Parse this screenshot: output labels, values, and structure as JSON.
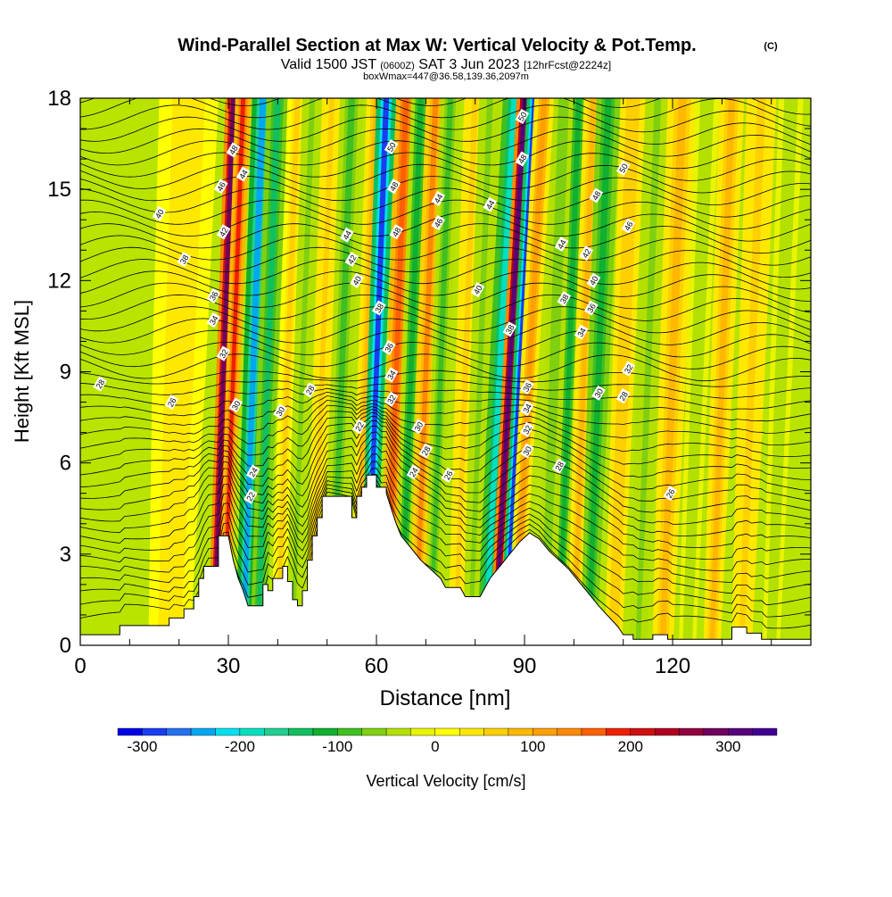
{
  "chart_data": {
    "type": "heatmap",
    "title": "Wind-Parallel Section at Max W: Vertical Velocity & Pot.Temp.",
    "title_mark": "(C)",
    "subtitle": {
      "valid": "Valid 1500 JST",
      "utc": "(0600Z)",
      "date": "SAT 3 Jun 2023",
      "fcst": "[12hrFcst@2224z]"
    },
    "subtitle2": "boxWmax=447@36.58,139.36,2097m",
    "xlabel": "Distance [nm]",
    "ylabel": "Height [Kft MSL]",
    "xlim": [
      0,
      148
    ],
    "ylim": [
      0,
      18
    ],
    "xticks": [
      0,
      30,
      60,
      90,
      120
    ],
    "yticks": [
      0,
      3,
      6,
      9,
      12,
      15,
      18
    ],
    "colorbar": {
      "label": "Vertical Velocity [cm/s]",
      "ticks": [
        -300,
        -200,
        -100,
        0,
        100,
        200,
        300
      ],
      "min": -325,
      "max": 350,
      "step": 25,
      "colors": [
        "#0000e8",
        "#1a3df0",
        "#2670f0",
        "#00a8f0",
        "#00e0f0",
        "#00e0c0",
        "#20d090",
        "#10c060",
        "#10b030",
        "#40c020",
        "#80d010",
        "#b4e000",
        "#e8f400",
        "#ffff00",
        "#ffe800",
        "#ffd000",
        "#ffb800",
        "#ffa000",
        "#ff8800",
        "#ff6000",
        "#f02000",
        "#d01010",
        "#b00020",
        "#900040",
        "#700060",
        "#58007a",
        "#400090"
      ]
    },
    "terrain_kft": [
      [
        0,
        0.35
      ],
      [
        8,
        0.35
      ],
      [
        8,
        0.65
      ],
      [
        14,
        0.65
      ],
      [
        14,
        0.65
      ],
      [
        18,
        0.65
      ],
      [
        18,
        0.9
      ],
      [
        21,
        0.9
      ],
      [
        21,
        1.2
      ],
      [
        23,
        1.2
      ],
      [
        23,
        1.6
      ],
      [
        24,
        1.6
      ],
      [
        24,
        2.2
      ],
      [
        25,
        2.2
      ],
      [
        25,
        2.6
      ],
      [
        28,
        2.6
      ],
      [
        28,
        3.6
      ],
      [
        29,
        3.6
      ],
      [
        30,
        3.6
      ],
      [
        31,
        2.8
      ],
      [
        32,
        2.2
      ],
      [
        33,
        1.8
      ],
      [
        34,
        1.3
      ],
      [
        37,
        1.3
      ],
      [
        37,
        2.0
      ],
      [
        38,
        2.0
      ],
      [
        38,
        1.8
      ],
      [
        39,
        1.8
      ],
      [
        39,
        2.2
      ],
      [
        41,
        2.2
      ],
      [
        41,
        2.6
      ],
      [
        42,
        2.6
      ],
      [
        42,
        2.1
      ],
      [
        43,
        2.1
      ],
      [
        43,
        1.5
      ],
      [
        44,
        1.5
      ],
      [
        44,
        1.3
      ],
      [
        45,
        1.3
      ],
      [
        45,
        1.8
      ],
      [
        46,
        1.8
      ],
      [
        46,
        2.8
      ],
      [
        47,
        2.8
      ],
      [
        47,
        3.6
      ],
      [
        48,
        3.6
      ],
      [
        48,
        4.2
      ],
      [
        49,
        4.2
      ],
      [
        49,
        4.9
      ],
      [
        55,
        4.9
      ],
      [
        55,
        4.2
      ],
      [
        56,
        4.2
      ],
      [
        56,
        4.9
      ],
      [
        57,
        4.9
      ],
      [
        57,
        5.2
      ],
      [
        58,
        5.2
      ],
      [
        58,
        5.6
      ],
      [
        60,
        5.6
      ],
      [
        60,
        5.2
      ],
      [
        62,
        5.2
      ],
      [
        62,
        5.0
      ],
      [
        63,
        4.5
      ],
      [
        64,
        4.0
      ],
      [
        65,
        3.6
      ],
      [
        67,
        3.2
      ],
      [
        69,
        2.8
      ],
      [
        71,
        2.5
      ],
      [
        73,
        2.2
      ],
      [
        74,
        1.9
      ],
      [
        77,
        1.9
      ],
      [
        78,
        1.6
      ],
      [
        81,
        1.6
      ],
      [
        82,
        1.9
      ],
      [
        83,
        2.2
      ],
      [
        85,
        2.6
      ],
      [
        87,
        3.0
      ],
      [
        89,
        3.4
      ],
      [
        91,
        3.7
      ],
      [
        93,
        3.5
      ],
      [
        95,
        3.1
      ],
      [
        97,
        2.8
      ],
      [
        99,
        2.5
      ],
      [
        101,
        2.1
      ],
      [
        103,
        1.7
      ],
      [
        105,
        1.3
      ],
      [
        107,
        0.95
      ],
      [
        109,
        0.6
      ],
      [
        110,
        0.35
      ],
      [
        112,
        0.35
      ],
      [
        112,
        0.2
      ],
      [
        116,
        0.2
      ],
      [
        116,
        0.35
      ],
      [
        119,
        0.35
      ],
      [
        119,
        0.2
      ],
      [
        132,
        0.2
      ],
      [
        132,
        0.6
      ],
      [
        135,
        0.6
      ],
      [
        135,
        0.4
      ],
      [
        138,
        0.4
      ],
      [
        138,
        0.2
      ],
      [
        148,
        0.2
      ]
    ],
    "w_bands": [
      {
        "x": 22,
        "w": 6,
        "v": 40
      },
      {
        "x": 31,
        "w": 1.6,
        "v": 280
      },
      {
        "x": 33,
        "w": 1.6,
        "v": 180
      },
      {
        "x": 37,
        "w": 2.2,
        "v": -230
      },
      {
        "x": 40,
        "w": 2.2,
        "v": -130
      },
      {
        "x": 44,
        "w": 2,
        "v": 50
      },
      {
        "x": 47,
        "w": 2,
        "v": -60
      },
      {
        "x": 51,
        "w": 2,
        "v": 60
      },
      {
        "x": 55,
        "w": 2.4,
        "v": -80
      },
      {
        "x": 60,
        "w": 2,
        "v": 80
      },
      {
        "x": 62,
        "w": 2,
        "v": -300
      },
      {
        "x": 66,
        "w": 2,
        "v": 170
      },
      {
        "x": 69,
        "w": 2,
        "v": -110
      },
      {
        "x": 72,
        "w": 2,
        "v": 130
      },
      {
        "x": 75,
        "w": 2,
        "v": -90
      },
      {
        "x": 80,
        "w": 2.2,
        "v": 60
      },
      {
        "x": 83,
        "w": 2.2,
        "v": -60
      },
      {
        "x": 88,
        "w": 2.4,
        "v": -200
      },
      {
        "x": 90,
        "w": 1.6,
        "v": 300
      },
      {
        "x": 92,
        "w": 1.5,
        "v": -280
      },
      {
        "x": 94,
        "w": 2,
        "v": 110
      },
      {
        "x": 98,
        "w": 2,
        "v": -70
      },
      {
        "x": 101,
        "w": 2,
        "v": -110
      },
      {
        "x": 104,
        "w": 2,
        "v": 80
      },
      {
        "x": 107,
        "w": 2.4,
        "v": -120
      },
      {
        "x": 112,
        "w": 2.5,
        "v": 70
      },
      {
        "x": 117,
        "w": 2.5,
        "v": -60
      },
      {
        "x": 122,
        "w": 3,
        "v": 90
      },
      {
        "x": 127,
        "w": 2.5,
        "v": -50
      },
      {
        "x": 132,
        "w": 2.5,
        "v": 80
      },
      {
        "x": 138,
        "w": 3,
        "v": 60
      },
      {
        "x": 144,
        "w": 2.5,
        "v": -40
      }
    ],
    "theta_labels": [
      {
        "x": 31,
        "y": 16.3,
        "t": "48"
      },
      {
        "x": 33,
        "y": 15.5,
        "t": "44"
      },
      {
        "x": 28.5,
        "y": 15.1,
        "t": "46"
      },
      {
        "x": 29,
        "y": 13.6,
        "t": "42"
      },
      {
        "x": 16,
        "y": 14.2,
        "t": "40"
      },
      {
        "x": 21,
        "y": 12.7,
        "t": "38"
      },
      {
        "x": 27,
        "y": 11.5,
        "t": "36"
      },
      {
        "x": 27,
        "y": 10.7,
        "t": "34"
      },
      {
        "x": 29,
        "y": 9.6,
        "t": "32"
      },
      {
        "x": 31.5,
        "y": 7.9,
        "t": "30"
      },
      {
        "x": 40.5,
        "y": 7.7,
        "t": "30"
      },
      {
        "x": 46.5,
        "y": 8.4,
        "t": "28"
      },
      {
        "x": 4,
        "y": 8.6,
        "t": "28"
      },
      {
        "x": 18.5,
        "y": 8.0,
        "t": "26"
      },
      {
        "x": 56.5,
        "y": 7.2,
        "t": "22"
      },
      {
        "x": 35,
        "y": 5.7,
        "t": "24"
      },
      {
        "x": 34.5,
        "y": 4.9,
        "t": "22"
      },
      {
        "x": 63,
        "y": 16.4,
        "t": "50"
      },
      {
        "x": 63.5,
        "y": 15.1,
        "t": "48"
      },
      {
        "x": 54,
        "y": 13.5,
        "t": "44"
      },
      {
        "x": 55,
        "y": 12.7,
        "t": "42"
      },
      {
        "x": 56,
        "y": 12.0,
        "t": "40"
      },
      {
        "x": 60.5,
        "y": 11.1,
        "t": "38"
      },
      {
        "x": 64,
        "y": 13.6,
        "t": "48"
      },
      {
        "x": 62.5,
        "y": 9.8,
        "t": "36"
      },
      {
        "x": 63,
        "y": 8.9,
        "t": "34"
      },
      {
        "x": 63,
        "y": 8.1,
        "t": "32"
      },
      {
        "x": 68.5,
        "y": 7.2,
        "t": "30"
      },
      {
        "x": 70,
        "y": 6.4,
        "t": "28"
      },
      {
        "x": 67.5,
        "y": 5.7,
        "t": "24"
      },
      {
        "x": 74.5,
        "y": 5.6,
        "t": "26"
      },
      {
        "x": 72.5,
        "y": 14.7,
        "t": "44"
      },
      {
        "x": 72.5,
        "y": 13.9,
        "t": "46"
      },
      {
        "x": 83,
        "y": 14.5,
        "t": "44"
      },
      {
        "x": 80.5,
        "y": 11.7,
        "t": "40"
      },
      {
        "x": 87,
        "y": 10.4,
        "t": "38"
      },
      {
        "x": 89.5,
        "y": 17.4,
        "t": "50"
      },
      {
        "x": 89.5,
        "y": 16.0,
        "t": "48"
      },
      {
        "x": 90.5,
        "y": 8.5,
        "t": "36"
      },
      {
        "x": 90.5,
        "y": 7.8,
        "t": "34"
      },
      {
        "x": 90.5,
        "y": 7.1,
        "t": "32"
      },
      {
        "x": 90.5,
        "y": 6.4,
        "t": "30"
      },
      {
        "x": 97,
        "y": 5.9,
        "t": "28"
      },
      {
        "x": 110,
        "y": 15.7,
        "t": "50"
      },
      {
        "x": 104.5,
        "y": 14.8,
        "t": "48"
      },
      {
        "x": 111,
        "y": 13.8,
        "t": "46"
      },
      {
        "x": 97.5,
        "y": 13.2,
        "t": "44"
      },
      {
        "x": 102.5,
        "y": 12.9,
        "t": "42"
      },
      {
        "x": 104,
        "y": 12.0,
        "t": "40"
      },
      {
        "x": 98,
        "y": 11.4,
        "t": "38"
      },
      {
        "x": 103.5,
        "y": 11.1,
        "t": "36"
      },
      {
        "x": 101.5,
        "y": 10.3,
        "t": "34"
      },
      {
        "x": 111,
        "y": 9.1,
        "t": "32"
      },
      {
        "x": 105,
        "y": 8.3,
        "t": "30"
      },
      {
        "x": 110,
        "y": 8.2,
        "t": "28"
      },
      {
        "x": 119.5,
        "y": 5.0,
        "t": "26"
      }
    ]
  }
}
